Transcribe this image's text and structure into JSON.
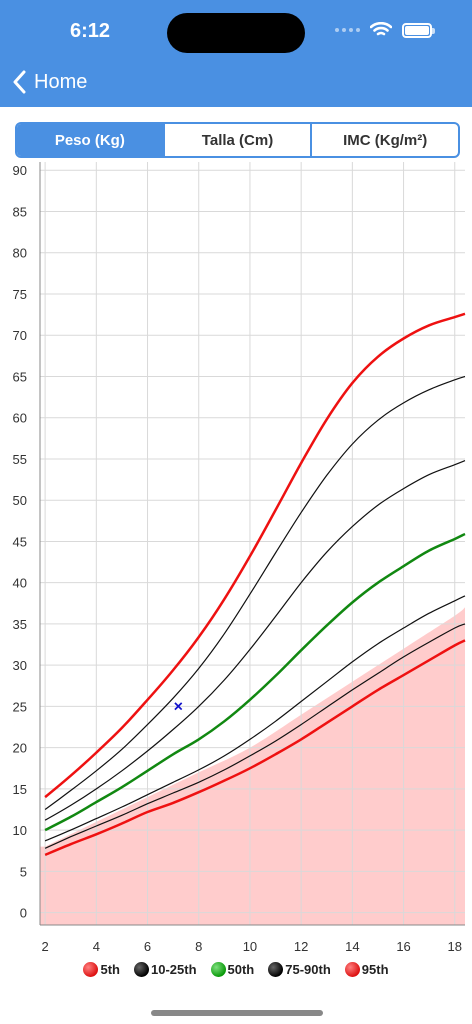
{
  "status": {
    "time": "6:12"
  },
  "nav": {
    "back_label": "Home"
  },
  "tabs": [
    {
      "label": "Peso (Kg)",
      "active": true
    },
    {
      "label": "Talla (Cm)",
      "active": false
    },
    {
      "label": "IMC (Kg/m²)",
      "active": false
    }
  ],
  "chart_data": {
    "type": "line",
    "xlim": [
      1.8,
      18.4
    ],
    "ylim": [
      -1.5,
      91
    ],
    "x_ticks": [
      2,
      4,
      6,
      8,
      10,
      12,
      14,
      16,
      18
    ],
    "y_ticks": [
      0,
      5,
      10,
      15,
      20,
      25,
      30,
      35,
      40,
      45,
      50,
      55,
      60,
      65,
      70,
      75,
      80,
      85,
      90
    ],
    "grid": true,
    "shaded_region": {
      "color": "#ffcccc",
      "x": [
        2,
        4,
        6,
        8,
        10,
        12,
        14,
        16,
        18,
        18.4
      ],
      "y": [
        8,
        11,
        14,
        17,
        20,
        24,
        28,
        32,
        36,
        37
      ]
    },
    "series": [
      {
        "name": "5th",
        "color": "#ee1111",
        "width": 2.5,
        "x": [
          2,
          3,
          4,
          5,
          6,
          7,
          8,
          9,
          10,
          11,
          12,
          13,
          14,
          15,
          16,
          17,
          18,
          18.4
        ],
        "y": [
          7,
          8.3,
          9.5,
          10.8,
          12.2,
          13.3,
          14.6,
          16.0,
          17.5,
          19.2,
          21.0,
          23.0,
          25.0,
          27.0,
          28.8,
          30.6,
          32.4,
          33.0
        ]
      },
      {
        "name": "10-25th",
        "color": "#111111",
        "width": 1.2,
        "x": [
          2,
          3,
          4,
          5,
          6,
          7,
          8,
          9,
          10,
          11,
          12,
          13,
          14,
          15,
          16,
          17,
          18,
          18.4
        ],
        "y": [
          7.8,
          9.2,
          10.5,
          11.8,
          13.2,
          14.5,
          15.8,
          17.3,
          19.0,
          20.8,
          22.8,
          24.9,
          27.0,
          29.0,
          31.0,
          32.8,
          34.5,
          35.0
        ]
      },
      {
        "name": "10-25th",
        "color": "#111111",
        "width": 1.2,
        "x": [
          2,
          3,
          4,
          5,
          6,
          7,
          8,
          9,
          10,
          11,
          12,
          13,
          14,
          15,
          16,
          17,
          18,
          18.4
        ],
        "y": [
          8.7,
          10.0,
          11.4,
          12.8,
          14.3,
          15.8,
          17.3,
          19.0,
          21.0,
          23.2,
          25.6,
          28.0,
          30.4,
          32.6,
          34.5,
          36.3,
          37.8,
          38.4
        ]
      },
      {
        "name": "50th",
        "color": "#118811",
        "width": 2.5,
        "x": [
          2,
          3,
          4,
          5,
          6,
          7,
          8,
          9,
          10,
          11,
          12,
          13,
          14,
          15,
          16,
          17,
          18,
          18.4
        ],
        "y": [
          10,
          11.6,
          13.4,
          15.2,
          17.2,
          19.2,
          21.0,
          23.2,
          25.8,
          28.7,
          31.8,
          34.8,
          37.6,
          40.0,
          42.0,
          43.9,
          45.3,
          45.9
        ]
      },
      {
        "name": "75-90th",
        "color": "#111111",
        "width": 1.2,
        "x": [
          2,
          3,
          4,
          5,
          6,
          7,
          8,
          9,
          10,
          11,
          12,
          13,
          14,
          15,
          16,
          17,
          18,
          18.4
        ],
        "y": [
          11.2,
          13.0,
          15.0,
          17.2,
          19.6,
          22.2,
          25.0,
          28.2,
          31.9,
          35.9,
          40.0,
          43.7,
          46.8,
          49.4,
          51.4,
          53.1,
          54.3,
          54.8
        ]
      },
      {
        "name": "75-90th",
        "color": "#111111",
        "width": 1.2,
        "x": [
          2,
          3,
          4,
          5,
          6,
          7,
          8,
          9,
          10,
          11,
          12,
          13,
          14,
          15,
          16,
          17,
          18,
          18.4
        ],
        "y": [
          12.5,
          14.8,
          17.2,
          19.8,
          22.8,
          26.0,
          29.6,
          33.8,
          38.6,
          43.6,
          48.5,
          53.0,
          56.8,
          59.7,
          61.8,
          63.4,
          64.6,
          65.0
        ]
      },
      {
        "name": "95th",
        "color": "#ee1111",
        "width": 2.5,
        "x": [
          2,
          3,
          4,
          5,
          6,
          7,
          8,
          9,
          10,
          11,
          12,
          13,
          14,
          15,
          16,
          17,
          18,
          18.4
        ],
        "y": [
          14,
          16.6,
          19.4,
          22.4,
          25.8,
          29.4,
          33.4,
          38.0,
          43.2,
          48.8,
          54.5,
          59.8,
          64.2,
          67.4,
          69.6,
          71.2,
          72.2,
          72.6
        ]
      }
    ],
    "marker": {
      "x": 7.2,
      "y": 25,
      "symbol": "×",
      "color": "#1111cc"
    },
    "legend": {
      "placement": "bottom",
      "items": [
        {
          "label": "5th",
          "color": "#ee2222"
        },
        {
          "label": "10-25th",
          "color": "#111111"
        },
        {
          "label": "50th",
          "color": "#119911"
        },
        {
          "label": "75-90th",
          "color": "#111111"
        },
        {
          "label": "95th",
          "color": "#ee2222"
        }
      ]
    }
  }
}
